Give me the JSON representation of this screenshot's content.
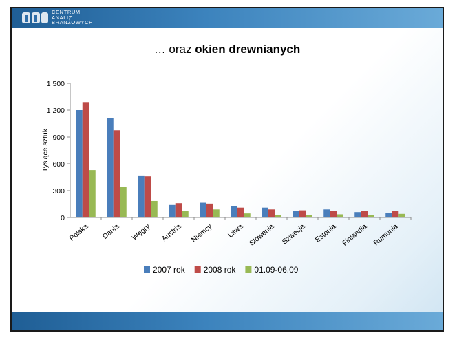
{
  "logo": {
    "line1": "CENTRUM",
    "line2": "ANALIZ",
    "line3": "BRANŻOWYCH"
  },
  "title": {
    "prefix": "… oraz ",
    "bold": "okien drewnianych"
  },
  "colors": {
    "series1": "#4a7ebb",
    "series2": "#be4b48",
    "series3": "#98b954"
  },
  "chart_data": {
    "type": "bar",
    "ylabel": "Tysiące sztuk",
    "ylim": [
      0,
      1500
    ],
    "yticks": [
      "0",
      "300",
      "600",
      "900",
      "1 200",
      "1 500"
    ],
    "categories": [
      "Polska",
      "Dania",
      "Węgry",
      "Austria",
      "Niemcy",
      "Litwa",
      "Słowenia",
      "Szwecja",
      "Estonia",
      "Finlandia",
      "Rumunia"
    ],
    "series": [
      {
        "name": "2007 rok",
        "values": [
          1200,
          1110,
          470,
          140,
          165,
          125,
          110,
          75,
          90,
          60,
          50
        ]
      },
      {
        "name": "2008 rok",
        "values": [
          1290,
          975,
          460,
          160,
          155,
          110,
          90,
          80,
          75,
          70,
          70
        ]
      },
      {
        "name": "01.09-06.09",
        "values": [
          530,
          345,
          185,
          75,
          90,
          45,
          30,
          30,
          35,
          30,
          40
        ]
      }
    ],
    "legend": "bottom",
    "grid": false
  }
}
